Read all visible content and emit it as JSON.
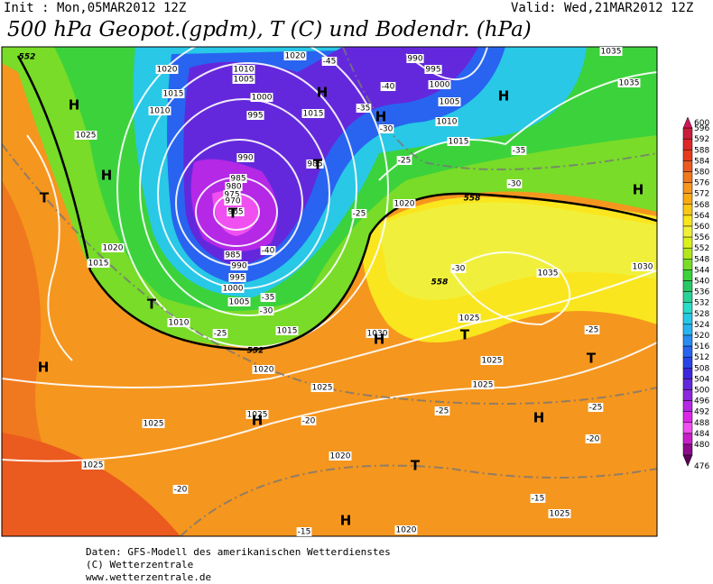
{
  "header": {
    "init": "Init : Mon,05MAR2012 12Z",
    "valid": "Valid: Wed,21MAR2012 12Z",
    "title": "500 hPa Geopot.(gpdm), T (C) und Bodendr. (hPa)"
  },
  "colorbar": {
    "levels": [
      600,
      596,
      592,
      588,
      584,
      580,
      576,
      572,
      568,
      564,
      560,
      556,
      552,
      548,
      544,
      540,
      536,
      532,
      528,
      524,
      520,
      516,
      512,
      508,
      504,
      500,
      496,
      492,
      488,
      484,
      480,
      476
    ],
    "colors": [
      "#d2145a",
      "#c81e3c",
      "#dc2828",
      "#e63c1e",
      "#eb5a1e",
      "#f0781e",
      "#f5961e",
      "#f8aa14",
      "#fac814",
      "#fae61e",
      "#f0f03c",
      "#dcf01e",
      "#b4e61e",
      "#78dc28",
      "#3cd23c",
      "#28c864",
      "#28d296",
      "#28dcc8",
      "#28c8e6",
      "#28b4f0",
      "#288cf0",
      "#2864f0",
      "#2846e6",
      "#3c28dc",
      "#6428dc",
      "#8c28dc",
      "#b428e6",
      "#dc28e6",
      "#f050f0",
      "#c81ec8",
      "#8c0a8c",
      "#5a005a"
    ]
  },
  "pressure_labels": [
    "1020",
    "1010",
    "1005",
    "1000",
    "995",
    "990",
    "985",
    "980",
    "975",
    "970",
    "965",
    "985",
    "990",
    "995",
    "1000",
    "1005",
    "1010",
    "1015",
    "1020",
    "1015",
    "1010",
    "1025",
    "1020",
    "1015",
    "1015",
    "985",
    "1020",
    "1010",
    "1015",
    "1005",
    "1000",
    "995",
    "990",
    "1035",
    "1035",
    "1035",
    "1030",
    "1025",
    "1025",
    "1030",
    "1025",
    "1025",
    "1025",
    "1025",
    "1020",
    "1025",
    "1025",
    "1020",
    "1020"
  ],
  "temperature_labels": [
    "-45",
    "-40",
    "-35",
    "-30",
    "-25",
    "-35",
    "-30",
    "-25",
    "-30",
    "-40",
    "-35",
    "-30",
    "-25",
    "-20",
    "-25",
    "-20",
    "-25",
    "-25",
    "-20",
    "-15",
    "-15"
  ],
  "pressure_centers": [
    "H",
    "H",
    "H",
    "H",
    "T",
    "T",
    "T",
    "T",
    "H",
    "H",
    "H",
    "H",
    "T",
    "T",
    "H",
    "H",
    "T",
    "H"
  ],
  "geopotential_labels": [
    "552",
    "558",
    "558",
    "552"
  ],
  "footer": [
    "Daten: GFS-Modell des amerikanischen Wetterdienstes",
    "(C) Wetterzentrale",
    "www.wetterzentrale.de"
  ]
}
